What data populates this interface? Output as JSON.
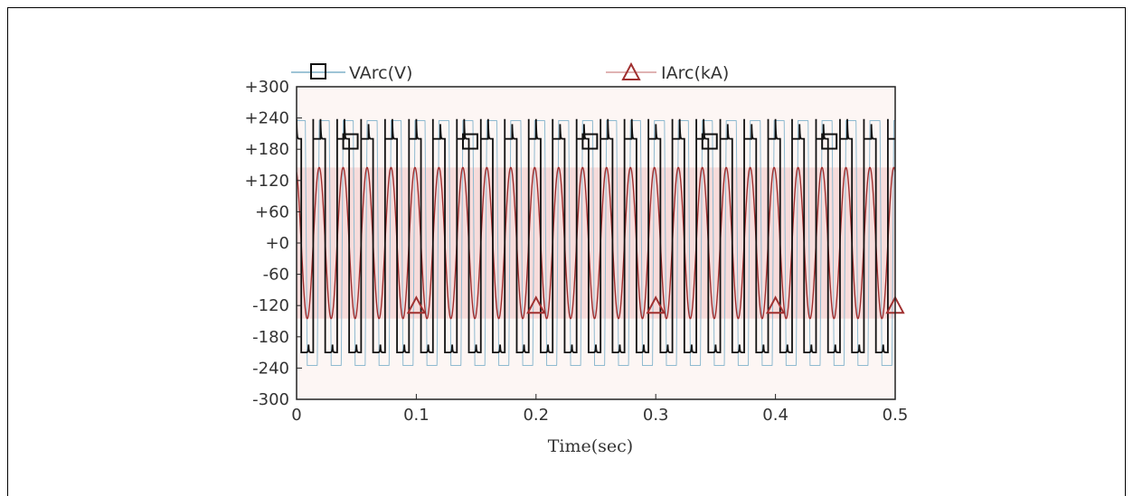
{
  "chart_data": {
    "type": "line",
    "title": "",
    "xlabel": "Time(sec)",
    "ylabel": "",
    "xlim": [
      0,
      0.5
    ],
    "ylim": [
      -300,
      300
    ],
    "x_ticks": [
      "0",
      "0.1",
      "0.2",
      "0.3",
      "0.4",
      "0.5"
    ],
    "y_ticks": [
      "+300",
      "+240",
      "+180",
      "+120",
      "+60",
      "+0",
      "-60",
      "-120",
      "-180",
      "-240",
      "-300"
    ],
    "grid": false,
    "legend_position": "top",
    "frequency_hz": 50,
    "series": [
      {
        "name": "VArc(V)",
        "marker": "square",
        "color": "#111111",
        "waveform": "square-like",
        "plateau": 200,
        "peak": 238,
        "trough": -210,
        "marker_x": [
          0.045,
          0.145,
          0.245,
          0.345,
          0.445
        ],
        "marker_y": 195
      },
      {
        "name": "IArc(kA)",
        "marker": "triangle",
        "color": "#a03030",
        "waveform": "sinusoidal",
        "amplitude": 145,
        "marker_x": [
          0.1,
          0.2,
          0.3,
          0.4,
          0.5
        ],
        "marker_y": -120
      }
    ]
  }
}
